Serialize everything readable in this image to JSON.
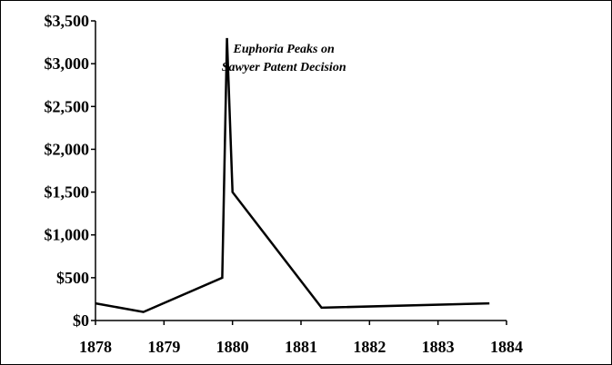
{
  "chart_data": {
    "type": "line",
    "title": "",
    "xlabel": "",
    "ylabel": "",
    "xlim": [
      1878,
      1884
    ],
    "ylim": [
      0,
      3500
    ],
    "x_ticks": [
      1878,
      1879,
      1880,
      1881,
      1882,
      1883,
      1884
    ],
    "x_tick_labels": [
      "1878",
      "1879",
      "1880",
      "1881",
      "1882",
      "1883",
      "1884"
    ],
    "y_ticks": [
      0,
      500,
      1000,
      1500,
      2000,
      2500,
      3000,
      3500
    ],
    "y_tick_labels": [
      "$0",
      "$500",
      "$1,000",
      "$1,500",
      "$2,000",
      "$2,500",
      "$3,000",
      "$3,500"
    ],
    "grid": false,
    "legend": "none",
    "line_color": "#000000",
    "series": [
      {
        "x": [
          1878.0,
          1878.7,
          1879.85,
          1879.92,
          1880.0,
          1881.3,
          1883.75
        ],
        "values": [
          200,
          100,
          500,
          3300,
          1500,
          150,
          200
        ]
      }
    ],
    "annotations": [
      {
        "line1": "Euphoria Peaks on",
        "line2": "Sawyer Patent Decision",
        "x": 1880.75,
        "y": 3000
      }
    ]
  }
}
